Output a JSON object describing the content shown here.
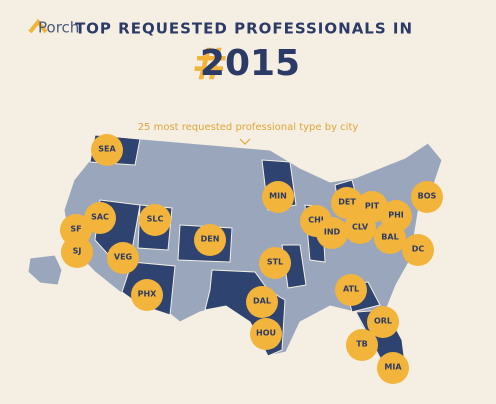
{
  "header": {
    "brand": "Porch",
    "title": "TOP REQUESTED PROFESSIONALS IN",
    "hashtag": "#",
    "year": "2015",
    "subtitle": "25 most requested professional type by city"
  },
  "cities": [
    "SEA",
    "SAC",
    "SF",
    "SJ",
    "VEG",
    "SLC",
    "PHX",
    "DEN",
    "MIN",
    "CHI",
    "DET",
    "IND",
    "CLV",
    "PIT",
    "PHI",
    "BOS",
    "BAL",
    "DC",
    "STL",
    "DAL",
    "HOU",
    "ATL",
    "ORL",
    "TB",
    "MIA"
  ]
}
